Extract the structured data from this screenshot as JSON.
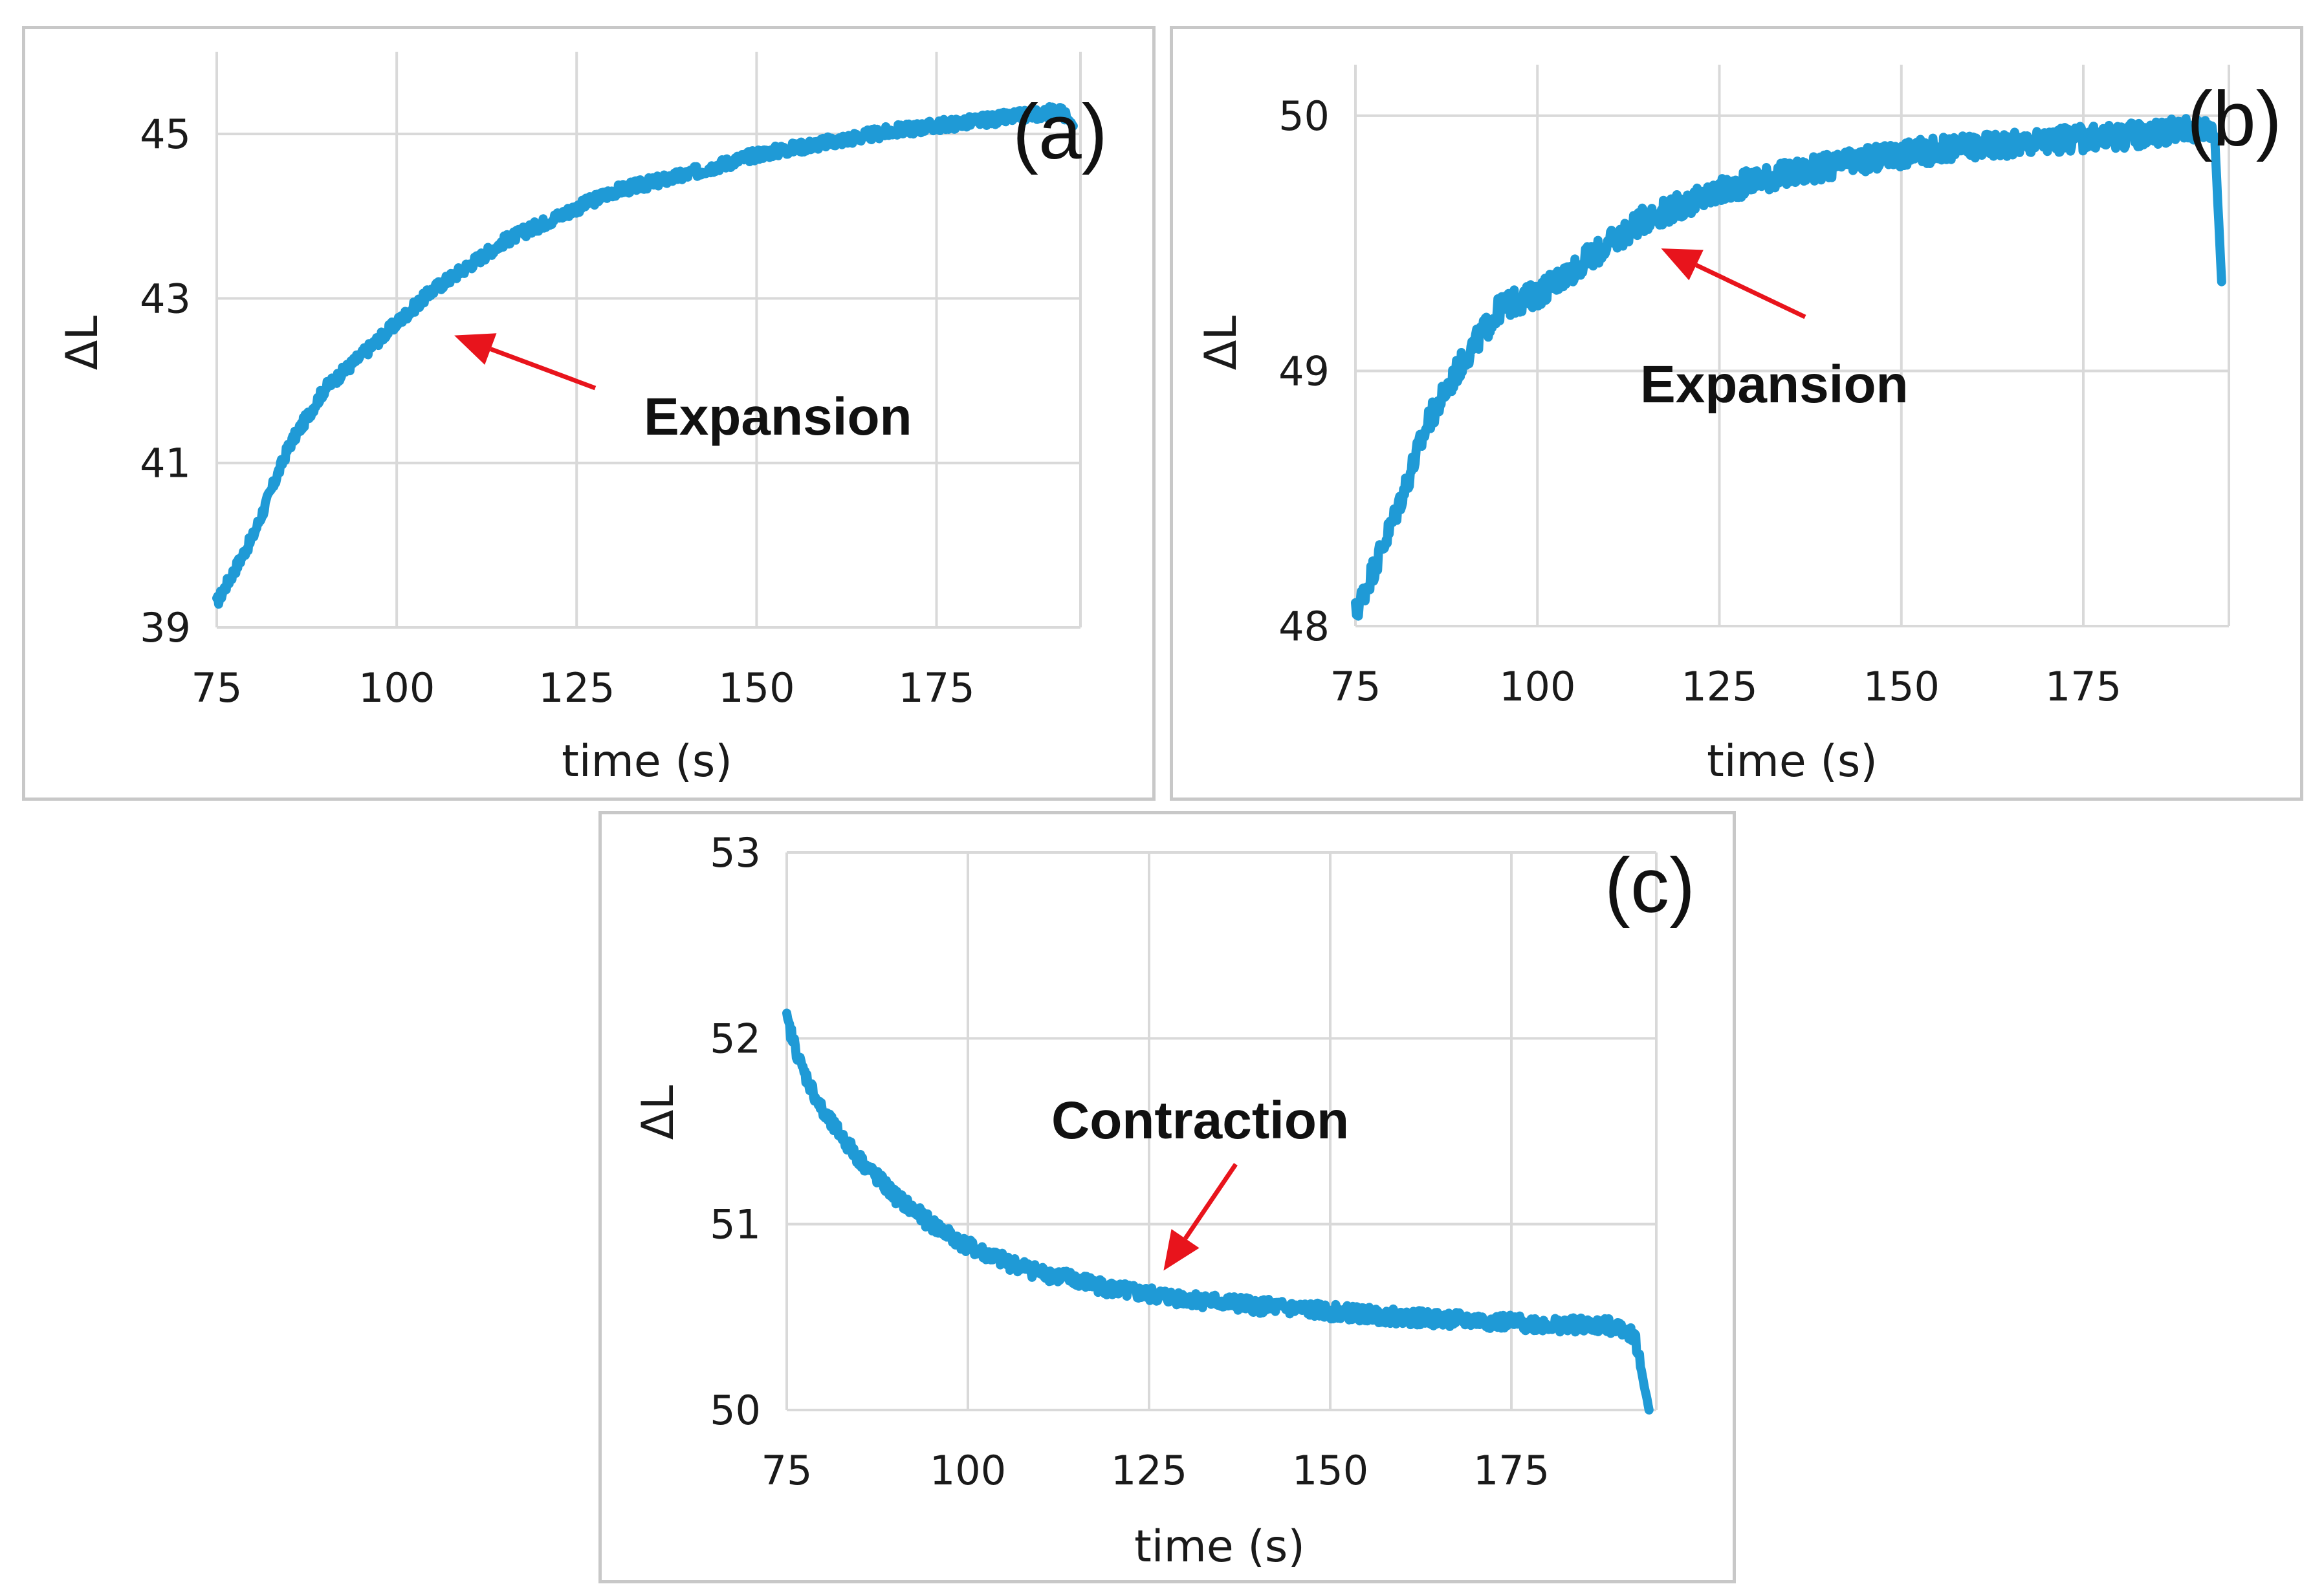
{
  "colors": {
    "series": "#1f9ad6",
    "arrow": "#e8141c",
    "grid": "#d9d9d9",
    "frame": "#c8c8c8"
  },
  "chart_data": [
    {
      "type": "line",
      "panel_label": "(a)",
      "xlabel": "time (s)",
      "ylabel": "ΔL",
      "xlim": [
        75,
        195
      ],
      "ylim": [
        39,
        46
      ],
      "xticks": [
        75,
        100,
        125,
        150,
        175
      ],
      "yticks": [
        39,
        41,
        43,
        45
      ],
      "annotation": {
        "text": "Expansion",
        "arrow_target": {
          "x": 108,
          "y": 42.55
        }
      },
      "series": [
        {
          "name": "ΔL",
          "x": [
            75,
            80,
            85,
            90,
            95,
            100,
            105,
            110,
            115,
            120,
            125,
            130,
            140,
            150,
            160,
            170,
            180,
            190,
            192,
            194
          ],
          "y": [
            39.3,
            40.1,
            41.2,
            41.9,
            42.3,
            42.7,
            43.1,
            43.4,
            43.7,
            43.9,
            44.1,
            44.3,
            44.5,
            44.75,
            44.9,
            45.05,
            45.15,
            45.25,
            45.3,
            45.1
          ],
          "noise": 0.07
        }
      ]
    },
    {
      "type": "line",
      "panel_label": "(b)",
      "xlabel": "time (s)",
      "ylabel": "ΔL",
      "xlim": [
        75,
        195
      ],
      "ylim": [
        48,
        50.2
      ],
      "xticks": [
        75,
        100,
        125,
        150,
        175
      ],
      "yticks": [
        48,
        49,
        50
      ],
      "annotation": {
        "text": "Expansion",
        "arrow_target": {
          "x": 117,
          "y": 49.48
        }
      },
      "series": [
        {
          "name": "ΔL",
          "x": [
            75,
            80,
            85,
            90,
            95,
            100,
            105,
            110,
            115,
            120,
            125,
            130,
            140,
            150,
            160,
            170,
            180,
            190,
            193,
            194
          ],
          "y": [
            48.05,
            48.4,
            48.8,
            49.05,
            49.25,
            49.3,
            49.4,
            49.5,
            49.6,
            49.65,
            49.7,
            49.75,
            49.8,
            49.85,
            49.88,
            49.9,
            49.92,
            49.95,
            49.95,
            49.35
          ],
          "noise": 0.05
        }
      ]
    },
    {
      "type": "line",
      "panel_label": "(c)",
      "xlabel": "time (s)",
      "ylabel": "ΔL",
      "xlim": [
        75,
        195
      ],
      "ylim": [
        50,
        53
      ],
      "xticks": [
        75,
        100,
        125,
        150,
        175
      ],
      "yticks": [
        50,
        51,
        52,
        53
      ],
      "annotation": {
        "text": "Contraction",
        "arrow_target": {
          "x": 127,
          "y": 50.75
        }
      },
      "series": [
        {
          "name": "ΔL",
          "x": [
            75,
            77,
            80,
            85,
            90,
            95,
            100,
            105,
            110,
            115,
            120,
            125,
            130,
            140,
            150,
            160,
            170,
            180,
            190,
            192,
            194
          ],
          "y": [
            52.1,
            51.85,
            51.6,
            51.35,
            51.15,
            51.0,
            50.88,
            50.8,
            50.74,
            50.7,
            50.65,
            50.62,
            50.6,
            50.56,
            50.53,
            50.5,
            50.48,
            50.46,
            50.45,
            50.4,
            50.0
          ],
          "noise": 0.04
        }
      ]
    }
  ]
}
